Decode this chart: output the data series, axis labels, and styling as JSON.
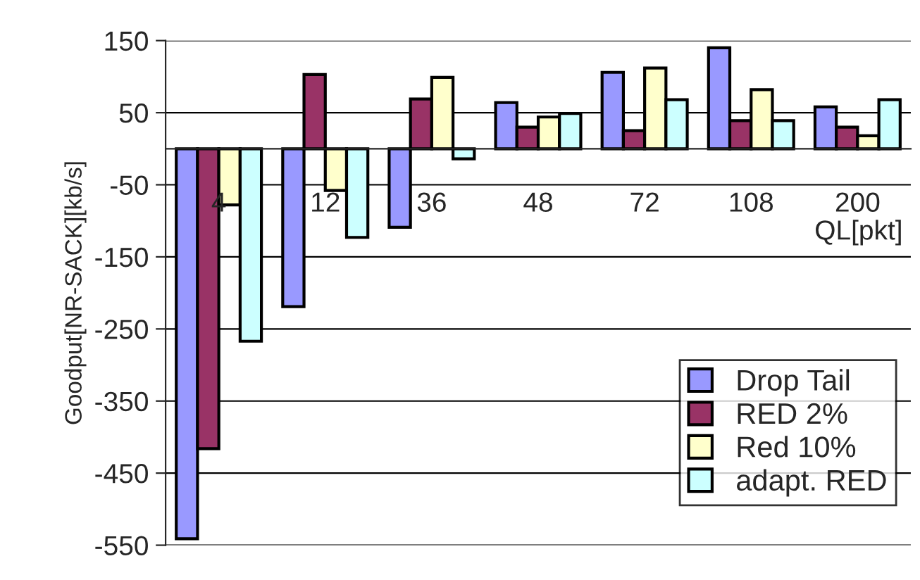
{
  "chart_data": {
    "type": "bar",
    "xlabel": "QL[pkt]",
    "ylabel": "Goodput[NR-SACK][kb/s]",
    "categories": [
      "4",
      "12",
      "36",
      "48",
      "72",
      "108",
      "200"
    ],
    "series": [
      {
        "name": "Drop Tail",
        "color": "#9999ff",
        "values": [
          -541,
          -219,
          -109,
          64,
          106,
          140,
          58
        ]
      },
      {
        "name": "RED 2%",
        "color": "#993366",
        "values": [
          -416,
          103,
          69,
          30,
          25,
          39,
          30
        ]
      },
      {
        "name": "Red 10%",
        "color": "#ffffcc",
        "values": [
          -78,
          -58,
          99,
          44,
          112,
          82,
          18
        ]
      },
      {
        "name": "adapt. RED",
        "color": "#ccffff",
        "values": [
          -267,
          -123,
          -14,
          49,
          68,
          39,
          68
        ]
      }
    ],
    "ylim": [
      -550,
      150
    ],
    "yticks": [
      -550,
      -450,
      -350,
      -250,
      -150,
      -50,
      50,
      150
    ],
    "grid": "y",
    "legend": "bottom right"
  }
}
